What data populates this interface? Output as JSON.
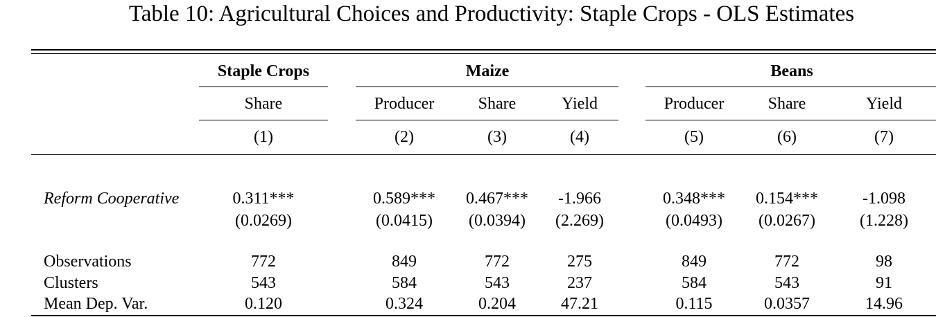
{
  "title": "Table 10: Agricultural Choices and Productivity: Staple Crops - OLS Estimates",
  "header": {
    "groups": [
      "Staple Crops",
      "Maize",
      "Beans"
    ],
    "subheaders": [
      "Share",
      "Producer",
      "Share",
      "Yield",
      "Producer",
      "Share",
      "Yield"
    ],
    "column_numbers": [
      "(1)",
      "(2)",
      "(3)",
      "(4)",
      "(5)",
      "(6)",
      "(7)"
    ]
  },
  "rows": {
    "reform": {
      "label": "Reform Cooperative",
      "coef": [
        "0.311***",
        "0.589***",
        "0.467***",
        "-1.966",
        "0.348***",
        "0.154***",
        "-1.098"
      ],
      "se": [
        "(0.0269)",
        "(0.0415)",
        "(0.0394)",
        "(2.269)",
        "(0.0493)",
        "(0.0267)",
        "(1.228)"
      ]
    },
    "observations": {
      "label": "Observations",
      "values": [
        "772",
        "849",
        "772",
        "275",
        "849",
        "772",
        "98"
      ]
    },
    "clusters": {
      "label": "Clusters",
      "values": [
        "543",
        "584",
        "543",
        "237",
        "584",
        "543",
        "91"
      ]
    },
    "mean_dep_var": {
      "label": "Mean Dep. Var.",
      "values": [
        "0.120",
        "0.324",
        "0.204",
        "47.21",
        "0.115",
        "0.0357",
        "14.96"
      ]
    }
  }
}
